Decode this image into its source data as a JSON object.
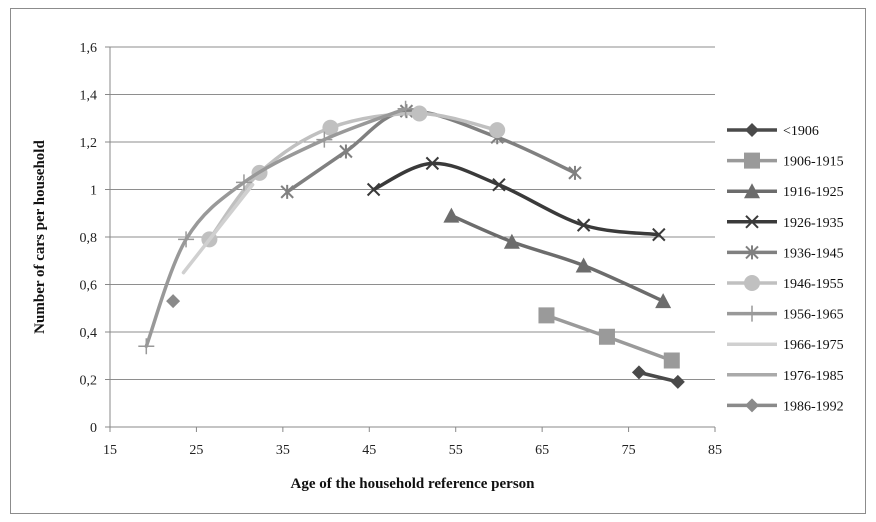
{
  "chart_data": {
    "type": "line",
    "xlabel": "Age of the household reference person",
    "ylabel": "Number of cars per household",
    "xlim": [
      15,
      85
    ],
    "ylim": [
      0,
      1.6
    ],
    "x_ticks": [
      "15",
      "25",
      "35",
      "45",
      "55",
      "65",
      "75",
      "85"
    ],
    "y_ticks": [
      "0",
      "0,2",
      "0,4",
      "0,6",
      "0,8",
      "1",
      "1,2",
      "1,4",
      "1,6"
    ],
    "grid": "horizontal",
    "legend_position": "right",
    "series": [
      {
        "name": "<1906",
        "color": "#4a4a4a",
        "marker": "diamond",
        "x": [
          76.2,
          80.7
        ],
        "y": [
          0.23,
          0.19
        ]
      },
      {
        "name": "1906-1915",
        "color": "#9a9a9a",
        "marker": "square",
        "x": [
          65.5,
          72.5,
          80
        ],
        "y": [
          0.47,
          0.38,
          0.28
        ]
      },
      {
        "name": "1916-1925",
        "color": "#6c6c6c",
        "marker": "triangle",
        "x": [
          54.5,
          61.5,
          69.8,
          79
        ],
        "y": [
          0.89,
          0.78,
          0.68,
          0.53
        ]
      },
      {
        "name": "1926-1935",
        "color": "#3a3a3a",
        "marker": "x",
        "x": [
          45.5,
          52.3,
          60,
          69.8,
          78.5
        ],
        "y": [
          1.0,
          1.11,
          1.02,
          0.85,
          0.81
        ]
      },
      {
        "name": "1936-1945",
        "color": "#808080",
        "marker": "asterisk",
        "x": [
          35.5,
          42.3,
          49.3,
          59.8,
          68.8
        ],
        "y": [
          0.99,
          1.16,
          1.33,
          1.22,
          1.07
        ]
      },
      {
        "name": "1946-1955",
        "color": "#c0c0c0",
        "marker": "circle",
        "x": [
          26.5,
          32.3,
          40.5,
          50.8,
          59.8
        ],
        "y": [
          0.79,
          1.07,
          1.26,
          1.32,
          1.25
        ]
      },
      {
        "name": "1956-1965",
        "color": "#999999",
        "marker": "plus",
        "x": [
          19.2,
          23.8,
          30.5,
          39.8,
          49.2
        ],
        "y": [
          0.34,
          0.79,
          1.03,
          1.21,
          1.34
        ]
      },
      {
        "name": "1966-1975",
        "color": "#d0d0d0",
        "marker": "none",
        "x": [
          23.5,
          31.5
        ],
        "y": [
          0.65,
          1.02
        ]
      },
      {
        "name": "1976-1985",
        "color": "#aaaaaa",
        "marker": "none",
        "x": [],
        "y": []
      },
      {
        "name": "1986-1992",
        "color": "#8a8a8a",
        "marker": "diamond",
        "x": [
          22.3
        ],
        "y": [
          0.53
        ]
      }
    ]
  }
}
